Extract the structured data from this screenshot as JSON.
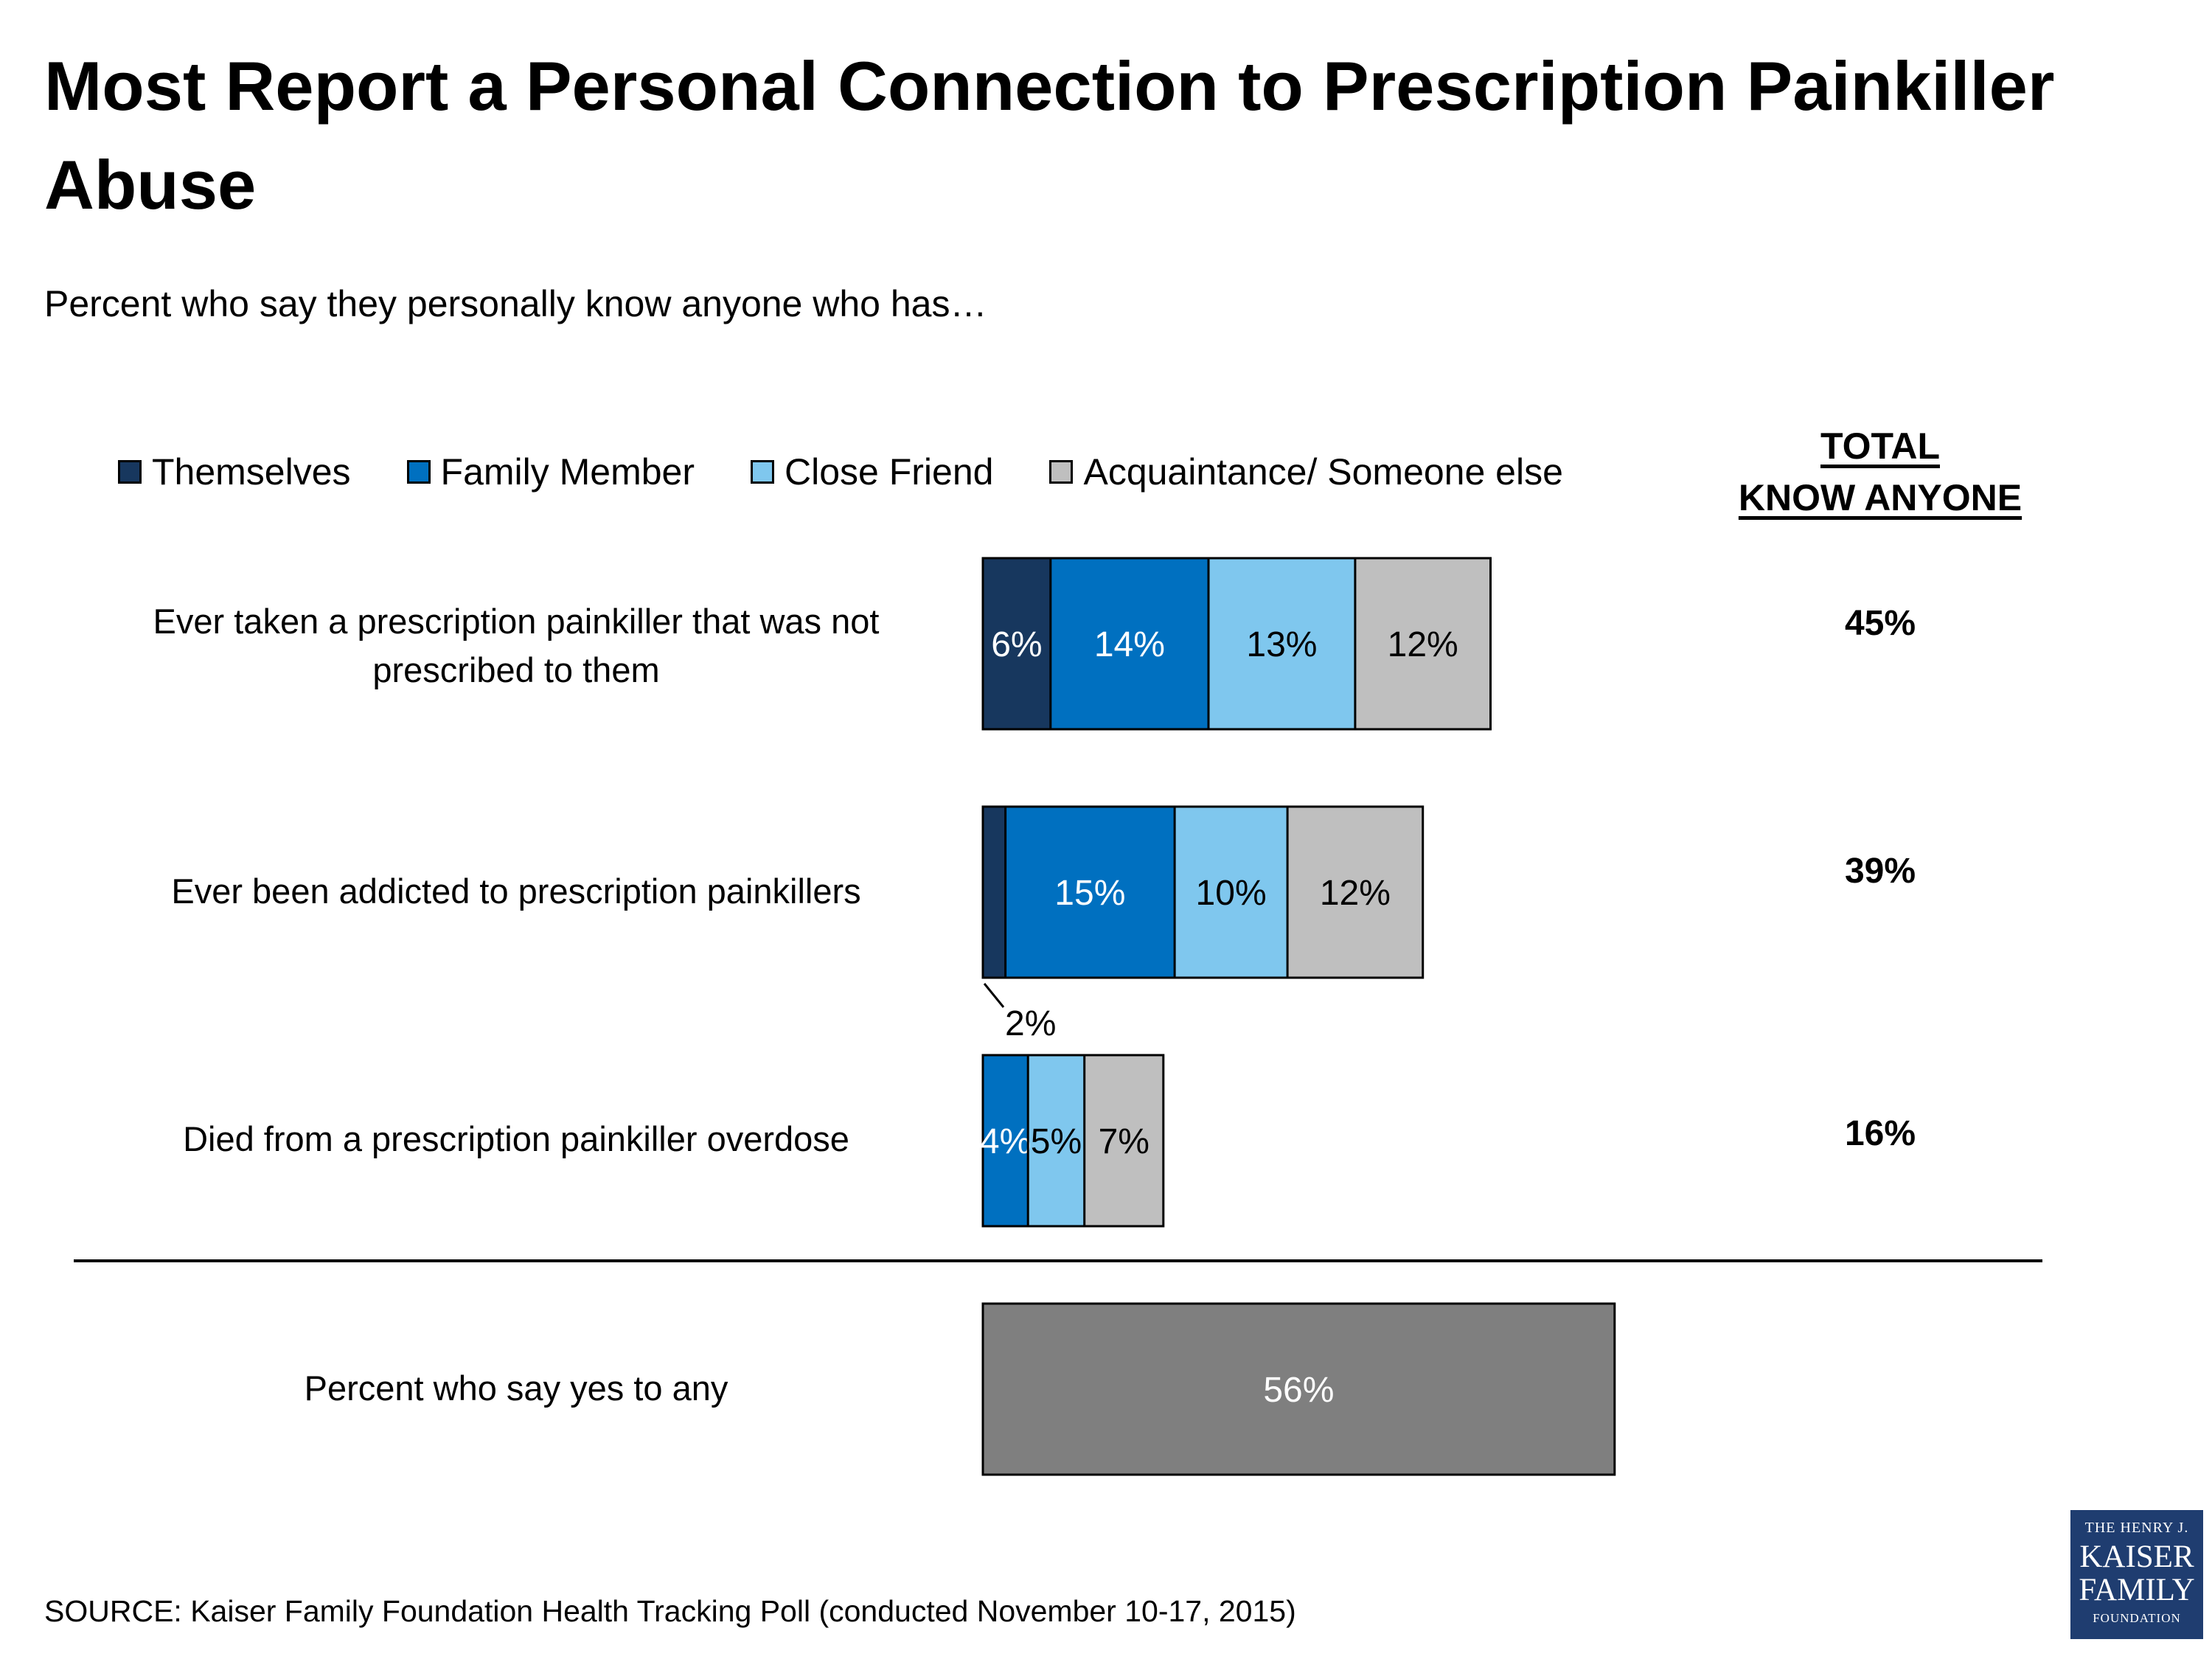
{
  "chart_data": {
    "type": "bar",
    "orientation": "horizontal",
    "stacked": true,
    "title": "Most Report a Personal Connection to Prescription Painkiller Abuse",
    "subtitle": "Percent who say they personally know anyone who has…",
    "legend_position": "top",
    "total_header": [
      "TOTAL",
      "KNOW ANYONE"
    ],
    "series": [
      {
        "name": "Themselves",
        "color": "#17375e"
      },
      {
        "name": "Family Member",
        "color": "#0070c0"
      },
      {
        "name": "Close Friend",
        "color": "#7fc7ee"
      },
      {
        "name": "Acquaintance/ Someone else",
        "color": "#bfbfbf"
      }
    ],
    "rows": [
      {
        "label_lines": [
          "Ever taken a prescription painkiller that was not",
          "prescribed to them"
        ],
        "values": [
          6,
          14,
          13,
          12
        ],
        "labels": [
          "6%",
          "14%",
          "13%",
          "12%"
        ],
        "total": "45%"
      },
      {
        "label_lines": [
          "Ever been addicted to prescription painkillers"
        ],
        "values": [
          2,
          15,
          10,
          12
        ],
        "labels": [
          "2%",
          "15%",
          "10%",
          "12%"
        ],
        "total": "39%",
        "callout_series": 0
      },
      {
        "label_lines": [
          "Died from a prescription painkiller overdose"
        ],
        "values": [
          0,
          4,
          5,
          7
        ],
        "labels": [
          "",
          "4%",
          "5%",
          "7%"
        ],
        "total": "16%"
      }
    ],
    "summary": {
      "label": "Percent who say yes to any",
      "value": 56,
      "value_label": "56%",
      "color": "#7f7f7f"
    }
  },
  "source": "SOURCE: Kaiser Family Foundation Health Tracking Poll (conducted November 10-17, 2015)",
  "logo": {
    "line1": "THE HENRY J.",
    "line2": "KAISER",
    "line3": "FAMILY",
    "line4": "FOUNDATION"
  }
}
